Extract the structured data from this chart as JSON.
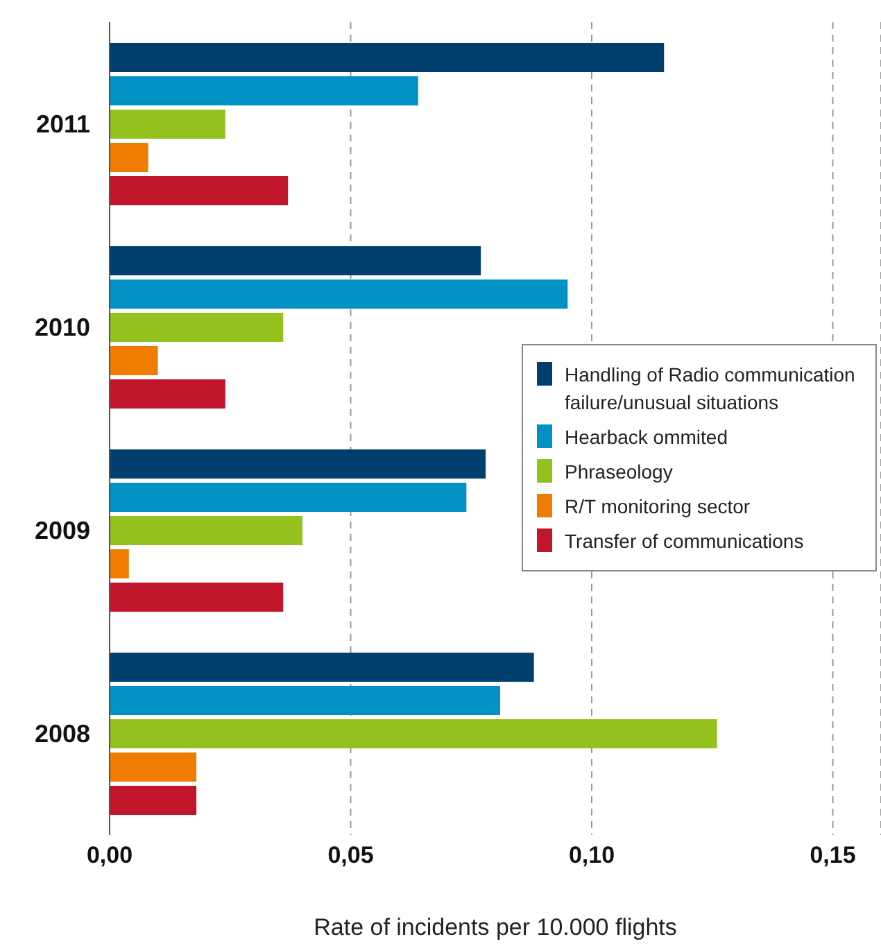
{
  "chart_data": {
    "type": "bar",
    "orientation": "horizontal",
    "xlabel": "Rate of incidents per 10.000 flights",
    "categories": [
      "2011",
      "2010",
      "2009",
      "2008"
    ],
    "series": [
      {
        "name": "Handling of Radio communication failure/unusual situations",
        "color": "#003f6e",
        "values": [
          0.115,
          0.077,
          0.078,
          0.088
        ]
      },
      {
        "name": "Hearback ommited",
        "color": "#0092c4",
        "values": [
          0.064,
          0.095,
          0.074,
          0.081
        ]
      },
      {
        "name": "Phraseology",
        "color": "#95c11f",
        "values": [
          0.024,
          0.036,
          0.04,
          0.126
        ]
      },
      {
        "name": "R/T monitoring sector",
        "color": "#f07c00",
        "values": [
          0.008,
          0.01,
          0.004,
          0.018
        ]
      },
      {
        "name": "Transfer of communications",
        "color": "#c0152a",
        "values": [
          0.037,
          0.024,
          0.036,
          0.018
        ]
      }
    ],
    "xlim": [
      0,
      0.16
    ],
    "xticks": [
      {
        "value": 0,
        "label": "0,00"
      },
      {
        "value": 0.05,
        "label": "0,05"
      },
      {
        "value": 0.1,
        "label": "0,10"
      },
      {
        "value": 0.15,
        "label": "0,15"
      }
    ],
    "grid": "x",
    "legend": "right"
  }
}
